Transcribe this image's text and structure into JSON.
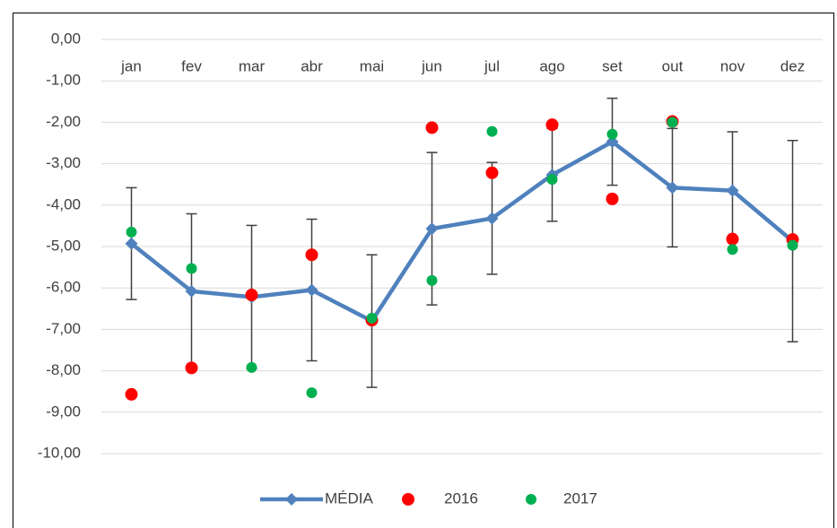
{
  "chart_data": {
    "type": "line",
    "categories": [
      "jan",
      "fev",
      "mar",
      "abr",
      "mai",
      "jun",
      "jul",
      "ago",
      "set",
      "out",
      "nov",
      "dez"
    ],
    "series": [
      {
        "name": "MÉDIA",
        "color": "#4f81bd",
        "values": [
          -4.93,
          -6.08,
          -6.22,
          -6.05,
          -6.8,
          -4.57,
          -4.32,
          -3.27,
          -2.47,
          -3.58,
          -3.65,
          -4.87
        ],
        "errors": [
          1.35,
          1.87,
          1.73,
          1.71,
          1.6,
          1.84,
          1.35,
          1.12,
          1.05,
          1.43,
          1.42,
          2.43
        ]
      },
      {
        "name": "2016",
        "color": "#ff0000",
        "values": [
          -8.57,
          -7.93,
          -6.17,
          -5.2,
          -6.78,
          -2.13,
          -3.22,
          -2.06,
          -3.85,
          -1.98,
          -4.82,
          -4.83
        ]
      },
      {
        "name": "2017",
        "color": "#00b050",
        "values": [
          -4.65,
          -5.53,
          -7.92,
          -8.53,
          -6.73,
          -5.82,
          -2.22,
          -3.38,
          -2.29,
          -2.0,
          -5.07,
          -4.97
        ]
      }
    ],
    "ylim": [
      -10,
      0
    ],
    "yticks": [
      {
        "value": 0,
        "label": "0,00"
      },
      {
        "value": -1,
        "label": "-1,00"
      },
      {
        "value": -2,
        "label": "-2,00"
      },
      {
        "value": -3,
        "label": "-3,00"
      },
      {
        "value": -4,
        "label": "-4,00"
      },
      {
        "value": -5,
        "label": "-5,00"
      },
      {
        "value": -6,
        "label": "-6,00"
      },
      {
        "value": -7,
        "label": "-7,00"
      },
      {
        "value": -8,
        "label": "-8,00"
      },
      {
        "value": -9,
        "label": "-9,00"
      },
      {
        "value": -10,
        "label": "-10,00"
      }
    ],
    "grid": true,
    "legend": "bottom"
  }
}
